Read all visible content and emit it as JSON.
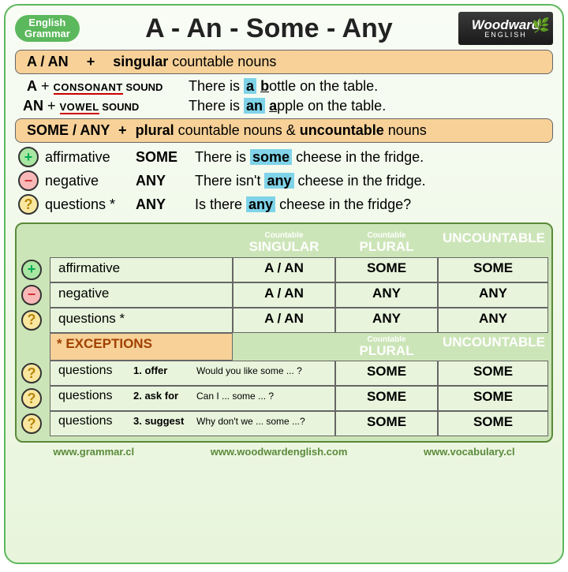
{
  "badge_line1": "English",
  "badge_line2": "Grammar",
  "title": "A - An - Some - Any",
  "logo_main": "Woodward",
  "logo_sub": "ENGLISH",
  "section1": {
    "bar_left": "A / AN",
    "bar_plus": "+",
    "bar_right_bold": "singular",
    "bar_right_rest": " countable nouns",
    "row_a_det": "A",
    "row_a_plus": " + ",
    "row_a_type": "CONSONANT",
    "row_a_sound": " SOUND",
    "row_a_ex_pre": "There is ",
    "row_a_hl": "a",
    "row_a_und": "b",
    "row_a_post": "ottle on the table.",
    "row_an_det": "AN",
    "row_an_type": "VOWEL",
    "row_an_ex_pre": "There is ",
    "row_an_hl": "an",
    "row_an_und": "a",
    "row_an_post": "pple on the table."
  },
  "section2": {
    "bar_left": "SOME / ANY",
    "bar_plus": "+",
    "bar_right_b1": "plural",
    "bar_right_r1": " countable nouns & ",
    "bar_right_b2": "uncountable",
    "bar_right_r2": " nouns",
    "rows": [
      {
        "icon": "plus",
        "label": "affirmative",
        "det": "SOME",
        "pre": "There is ",
        "hl": "some",
        "post": " cheese in the fridge."
      },
      {
        "icon": "minus",
        "label": "negative",
        "det": "ANY",
        "pre": "There isn't ",
        "hl": "any",
        "post": " cheese in the fridge."
      },
      {
        "icon": "q",
        "label": "questions *",
        "det": "ANY",
        "pre": "Is there ",
        "hl": "any",
        "post": " cheese in the fridge?"
      }
    ]
  },
  "table": {
    "head_c1_small": "Countable",
    "head_c1": "SINGULAR",
    "head_c2_small": "Countable",
    "head_c2": "PLURAL",
    "head_c3": "UNCOUNTABLE",
    "rows": [
      {
        "icon": "plus",
        "label": "affirmative",
        "v1": "A / AN",
        "v2": "SOME",
        "v3": "SOME"
      },
      {
        "icon": "minus",
        "label": "negative",
        "v1": "A / AN",
        "v2": "ANY",
        "v3": "ANY"
      },
      {
        "icon": "q",
        "label": "questions *",
        "v1": "A / AN",
        "v2": "ANY",
        "v3": "ANY"
      }
    ],
    "exceptions_label": "* EXCEPTIONS",
    "ex_head_c2_small": "Countable",
    "ex_head_c2": "PLURAL",
    "ex_head_c3": "UNCOUNTABLE",
    "ex_rows": [
      {
        "icon": "q",
        "l1": "questions",
        "l2": "1. offer",
        "l3": "Would you like some ... ?",
        "v2": "SOME",
        "v3": "SOME"
      },
      {
        "icon": "q",
        "l1": "questions",
        "l2": "2. ask for",
        "l3": "Can I ... some ... ?",
        "v2": "SOME",
        "v3": "SOME"
      },
      {
        "icon": "q",
        "l1": "questions",
        "l2": "3. suggest",
        "l3": "Why don't we ... some ...?",
        "v2": "SOME",
        "v3": "SOME"
      }
    ]
  },
  "footer": {
    "url1": "www.grammar.cl",
    "url2": "www.woodwardenglish.com",
    "url3": "www.vocabulary.cl"
  },
  "icons": {
    "plus": "+",
    "minus": "−",
    "q": "?"
  }
}
